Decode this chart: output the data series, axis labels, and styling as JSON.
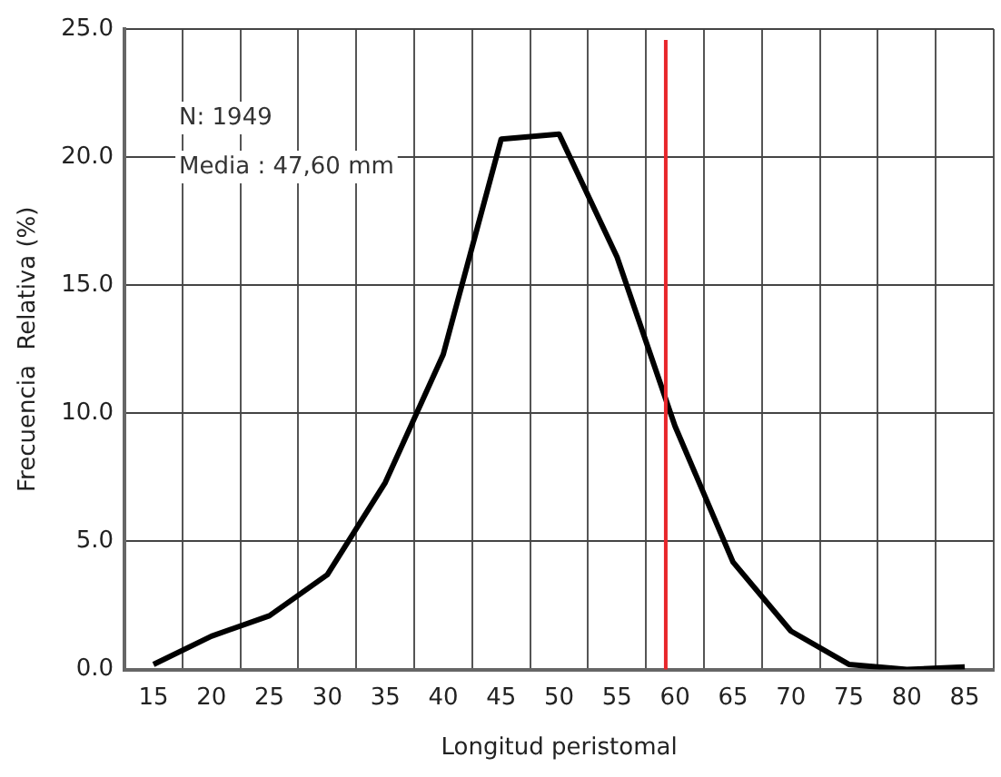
{
  "chart_data": {
    "type": "line",
    "xlabel": "Longitud peristomal",
    "ylabel": "Frecuencia  Relativa (%)",
    "x": [
      15,
      20,
      25,
      30,
      35,
      40,
      45,
      50,
      55,
      60,
      65,
      70,
      75,
      80,
      85
    ],
    "series": [
      {
        "color": "#000000",
        "values": [
          0.2,
          1.3,
          2.1,
          3.7,
          7.3,
          12.3,
          20.7,
          20.9,
          16.1,
          9.5,
          4.2,
          1.5,
          0.2,
          0.0,
          0.1
        ]
      }
    ],
    "xlim": [
      12.5,
      87.5
    ],
    "xticks": [
      15,
      20,
      25,
      30,
      35,
      40,
      45,
      50,
      55,
      60,
      65,
      70,
      75,
      80,
      85
    ],
    "ylim": [
      0,
      25
    ],
    "yticks": [
      {
        "value": 0,
        "label": "0.0"
      },
      {
        "value": 5,
        "label": "5.0"
      },
      {
        "value": 10,
        "label": "10.0"
      },
      {
        "value": 15,
        "label": "15.0"
      },
      {
        "value": 20,
        "label": "20.0"
      },
      {
        "value": 25,
        "label": "25.0"
      }
    ],
    "ref_lines": [
      {
        "axis": "x",
        "value": 59.2,
        "color": "#e8262b"
      }
    ],
    "annotations": [
      "N: 1949",
      "Media : 47,60 mm"
    ],
    "grid": true,
    "legend": false,
    "marker": "none",
    "line_style": "solid"
  }
}
